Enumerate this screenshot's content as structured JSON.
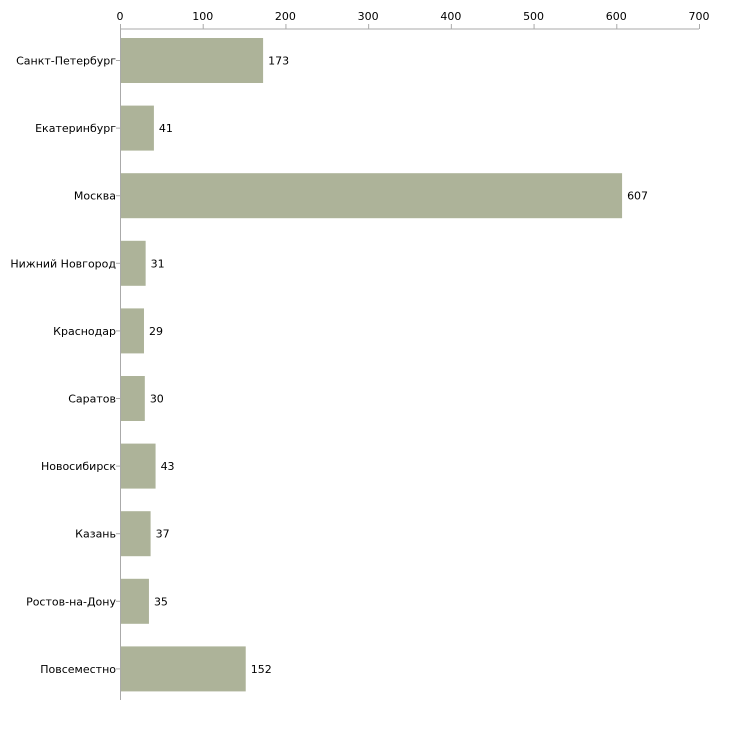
{
  "chart_data": {
    "type": "bar",
    "orientation": "horizontal",
    "title": "",
    "xlabel": "",
    "ylabel": "",
    "xlim": [
      0,
      700
    ],
    "ticks": [
      0,
      100,
      200,
      300,
      400,
      500,
      600,
      700
    ],
    "tick_labels": [
      "0",
      "100",
      "200",
      "300",
      "400",
      "500",
      "600",
      "700"
    ],
    "grid": false,
    "legend": "none",
    "categories": [
      "Санкт-Петербург",
      "Екатеринбург",
      "Москва",
      "Нижний Новгород",
      "Краснодар",
      "Саратов",
      "Новосибирск",
      "Казань",
      "Ростов-на-Дону",
      "Повсеместно"
    ],
    "values": [
      173,
      41,
      607,
      31,
      29,
      30,
      43,
      37,
      35,
      152
    ],
    "value_labels": [
      "173",
      "41",
      "607",
      "31",
      "29",
      "30",
      "43",
      "37",
      "35",
      "152"
    ]
  },
  "colors": {
    "bar": "#adb399",
    "axis": "#aaaaaa",
    "text": "#000000",
    "background": "#ffffff"
  }
}
